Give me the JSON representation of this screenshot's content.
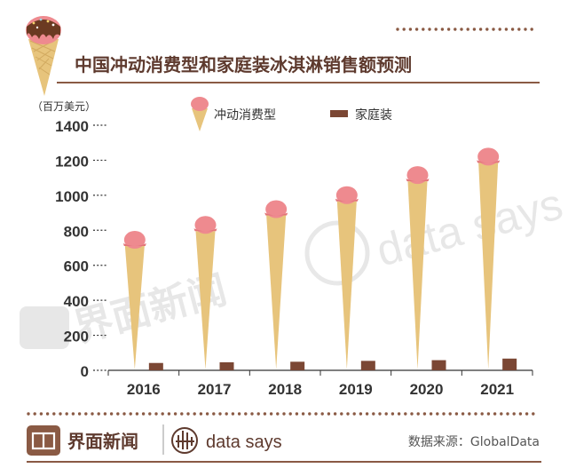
{
  "chart_data": {
    "type": "bar",
    "title": "中国冲动消费型和家庭装冰淇淋销售额预测",
    "ylabel": "（百万美元）",
    "xlabel": "",
    "categories": [
      "2016",
      "2017",
      "2018",
      "2019",
      "2020",
      "2021"
    ],
    "series": [
      {
        "name": "冲动消费型",
        "values": [
          710,
          795,
          885,
          965,
          1080,
          1185
        ]
      },
      {
        "name": "家庭装",
        "values": [
          42,
          46,
          49,
          54,
          58,
          67
        ]
      }
    ],
    "ylim": [
      0,
      1400
    ],
    "yticks": [
      "0",
      "200",
      "400",
      "600",
      "800",
      "1000",
      "1200",
      "1400"
    ],
    "grid": false,
    "legend": "top-center"
  },
  "footer": {
    "brand": "界面新闻",
    "partner": "data says",
    "source": "数据来源：GlobalData",
    "watermark_left": "界面新闻",
    "watermark_right": "data says"
  },
  "colors": {
    "cone": "#E7C47C",
    "scoop": "#EE8A8F",
    "family_bar": "#7B4734",
    "title": "#5E3A2E",
    "axis": "#333333",
    "accent": "#8A5A44"
  }
}
